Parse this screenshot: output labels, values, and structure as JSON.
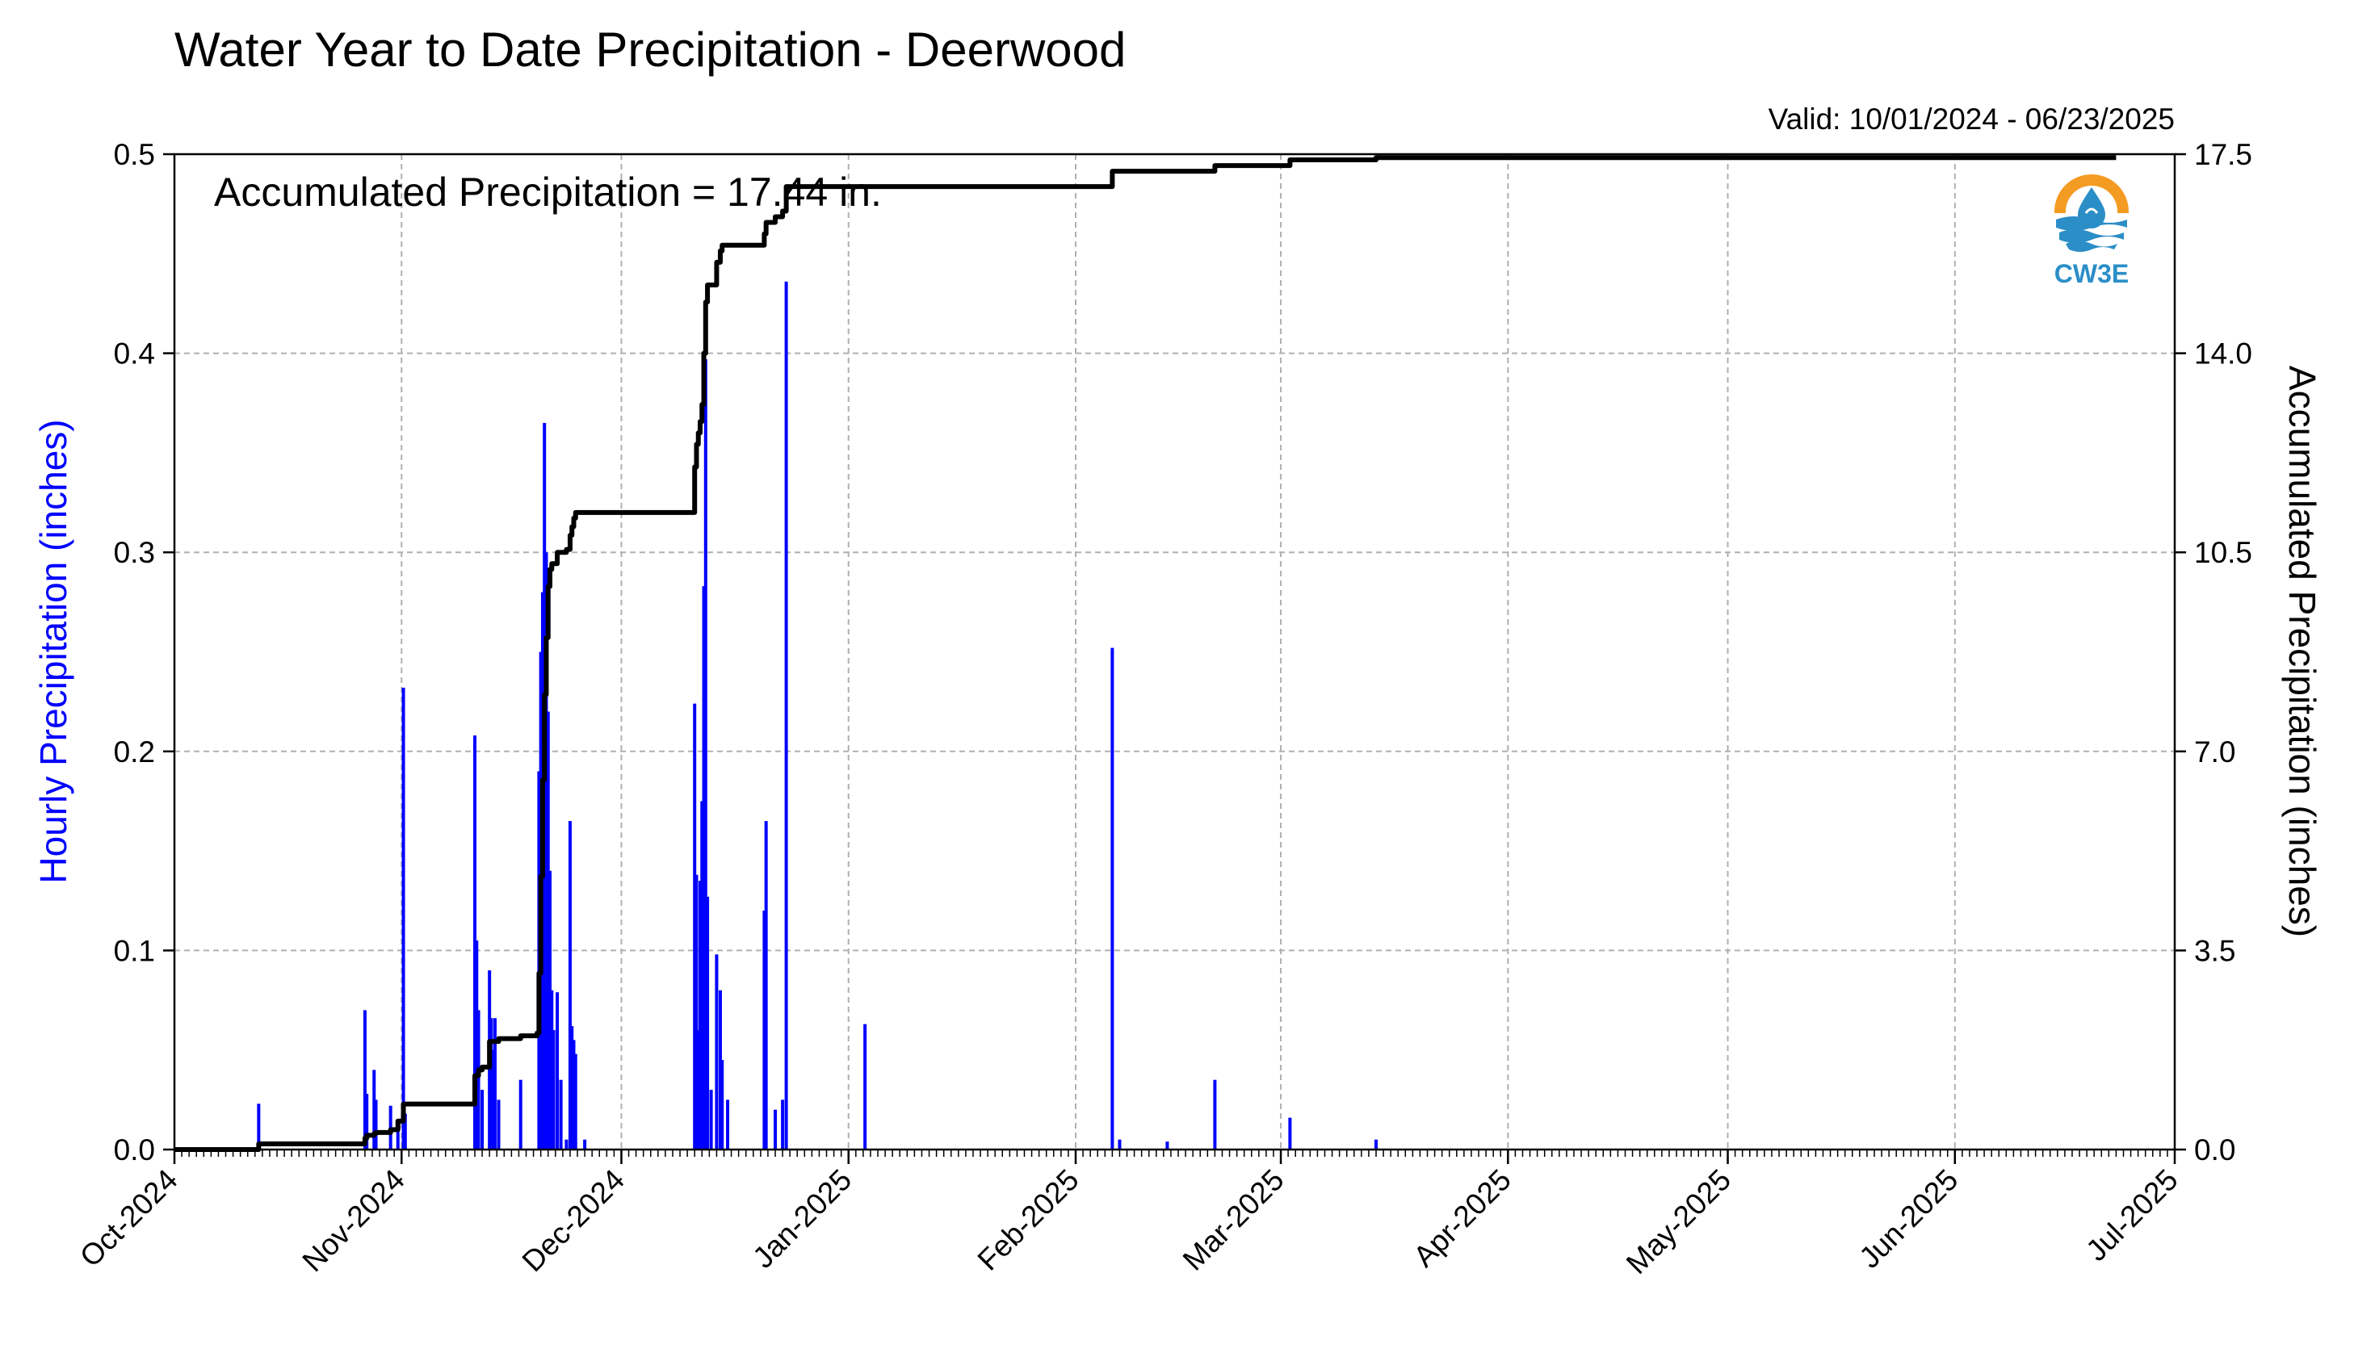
{
  "chart_data": {
    "type": "bar",
    "title": "Water Year to Date Precipitation - Deerwood",
    "subtitle": "Valid: 10/01/2024 - 06/23/2025",
    "annotation": "Accumulated Precipitation = 17.44 in.",
    "logo_text": "CW3E",
    "ylabel": "Hourly Precipitation (inches)",
    "y2label": "Accumulated Precipitation (inches)",
    "ylim": [
      0,
      0.5
    ],
    "y2lim": [
      0,
      17.5
    ],
    "xlim": [
      "2024-10-01",
      "2025-07-01"
    ],
    "grid": true,
    "yticks": [
      "0.0",
      "0.1",
      "0.2",
      "0.3",
      "0.4",
      "0.5"
    ],
    "y2ticks": [
      "0.0",
      "3.5",
      "7.0",
      "10.5",
      "14.0",
      "17.5"
    ],
    "xticks": [
      {
        "date": "2024-10-01",
        "label": "Oct-2024"
      },
      {
        "date": "2024-11-01",
        "label": "Nov-2024"
      },
      {
        "date": "2024-12-01",
        "label": "Dec-2024"
      },
      {
        "date": "2025-01-01",
        "label": "Jan-2025"
      },
      {
        "date": "2025-02-01",
        "label": "Feb-2025"
      },
      {
        "date": "2025-03-01",
        "label": "Mar-2025"
      },
      {
        "date": "2025-04-01",
        "label": "Apr-2025"
      },
      {
        "date": "2025-05-01",
        "label": "May-2025"
      },
      {
        "date": "2025-06-01",
        "label": "Jun-2025"
      },
      {
        "date": "2025-07-01",
        "label": "Jul-2025"
      }
    ],
    "series": [
      {
        "name": "Hourly Precipitation",
        "axis": "left",
        "color": "#0000ff",
        "data": [
          [
            "2024-10-12T12:00",
            0.023
          ],
          [
            "2024-10-27T00:00",
            0.07
          ],
          [
            "2024-10-27T06:00",
            0.028
          ],
          [
            "2024-10-28T06:00",
            0.04
          ],
          [
            "2024-10-28T12:00",
            0.025
          ],
          [
            "2024-10-30T12:00",
            0.022
          ],
          [
            "2024-10-31T12:00",
            0.012
          ],
          [
            "2024-11-01T06:00",
            0.232
          ],
          [
            "2024-11-01T12:00",
            0.018
          ],
          [
            "2024-11-11T00:00",
            0.208
          ],
          [
            "2024-11-11T06:00",
            0.105
          ],
          [
            "2024-11-11T12:00",
            0.07
          ],
          [
            "2024-11-12T00:00",
            0.03
          ],
          [
            "2024-11-13T00:00",
            0.09
          ],
          [
            "2024-11-13T06:00",
            0.066
          ],
          [
            "2024-11-13T12:00",
            0.05
          ],
          [
            "2024-11-13T18:00",
            0.066
          ],
          [
            "2024-11-14T06:00",
            0.025
          ],
          [
            "2024-11-17T06:00",
            0.035
          ],
          [
            "2024-11-19T18:00",
            0.19
          ],
          [
            "2024-11-20T00:00",
            0.25
          ],
          [
            "2024-11-20T06:00",
            0.28
          ],
          [
            "2024-11-20T12:00",
            0.365
          ],
          [
            "2024-11-20T18:00",
            0.3
          ],
          [
            "2024-11-21T00:00",
            0.22
          ],
          [
            "2024-11-21T06:00",
            0.14
          ],
          [
            "2024-11-21T12:00",
            0.08
          ],
          [
            "2024-11-21T18:00",
            0.06
          ],
          [
            "2024-11-22T06:00",
            0.079
          ],
          [
            "2024-11-22T18:00",
            0.035
          ],
          [
            "2024-11-23T12:00",
            0.005
          ],
          [
            "2024-11-24T00:00",
            0.165
          ],
          [
            "2024-11-24T06:00",
            0.062
          ],
          [
            "2024-11-24T12:00",
            0.055
          ],
          [
            "2024-11-24T18:00",
            0.048
          ],
          [
            "2024-11-26T00:00",
            0.005
          ],
          [
            "2024-12-11T00:00",
            0.224
          ],
          [
            "2024-12-11T06:00",
            0.138
          ],
          [
            "2024-12-11T12:00",
            0.06
          ],
          [
            "2024-12-11T18:00",
            0.135
          ],
          [
            "2024-12-12T00:00",
            0.175
          ],
          [
            "2024-12-12T06:00",
            0.283
          ],
          [
            "2024-12-12T12:00",
            0.397
          ],
          [
            "2024-12-12T18:00",
            0.127
          ],
          [
            "2024-12-13T06:00",
            0.03
          ],
          [
            "2024-12-14T00:00",
            0.098
          ],
          [
            "2024-12-14T12:00",
            0.08
          ],
          [
            "2024-12-14T18:00",
            0.045
          ],
          [
            "2024-12-15T12:00",
            0.025
          ],
          [
            "2024-12-20T12:00",
            0.12
          ],
          [
            "2024-12-20T18:00",
            0.165
          ],
          [
            "2024-12-22T00:00",
            0.02
          ],
          [
            "2024-12-23T00:00",
            0.025
          ],
          [
            "2024-12-23T12:00",
            0.436
          ],
          [
            "2025-01-03T06:00",
            0.063
          ],
          [
            "2025-02-06T00:00",
            0.252
          ],
          [
            "2025-02-07T00:00",
            0.005
          ],
          [
            "2025-02-13T12:00",
            0.004
          ],
          [
            "2025-02-20T00:00",
            0.035
          ],
          [
            "2025-03-02T06:00",
            0.016
          ],
          [
            "2025-03-14T00:00",
            0.005
          ]
        ]
      },
      {
        "name": "Accumulated Precipitation",
        "axis": "right",
        "color": "#000000",
        "step_data": [
          [
            "2024-10-01T00:00",
            0.0
          ],
          [
            "2024-10-12T12:00",
            0.1
          ],
          [
            "2024-10-27T00:00",
            0.2
          ],
          [
            "2024-10-27T06:00",
            0.25
          ],
          [
            "2024-10-28T06:00",
            0.28
          ],
          [
            "2024-10-28T12:00",
            0.3
          ],
          [
            "2024-10-30T12:00",
            0.35
          ],
          [
            "2024-10-31T12:00",
            0.5
          ],
          [
            "2024-11-01T06:00",
            0.8
          ],
          [
            "2024-11-11T00:00",
            1.3
          ],
          [
            "2024-11-11T12:00",
            1.4
          ],
          [
            "2024-11-12T00:00",
            1.45
          ],
          [
            "2024-11-13T00:00",
            1.9
          ],
          [
            "2024-11-14T06:00",
            1.95
          ],
          [
            "2024-11-17T06:00",
            2.0
          ],
          [
            "2024-11-19T12:00",
            2.05
          ],
          [
            "2024-11-19T18:00",
            3.1
          ],
          [
            "2024-11-20T00:00",
            4.8
          ],
          [
            "2024-11-20T06:00",
            6.5
          ],
          [
            "2024-11-20T12:00",
            8.0
          ],
          [
            "2024-11-20T18:00",
            9.0
          ],
          [
            "2024-11-21T00:00",
            9.9
          ],
          [
            "2024-11-21T06:00",
            10.2
          ],
          [
            "2024-11-21T12:00",
            10.3
          ],
          [
            "2024-11-22T06:00",
            10.5
          ],
          [
            "2024-11-23T12:00",
            10.55
          ],
          [
            "2024-11-24T00:00",
            10.8
          ],
          [
            "2024-11-24T06:00",
            10.95
          ],
          [
            "2024-11-24T12:00",
            11.1
          ],
          [
            "2024-11-24T18:00",
            11.2
          ],
          [
            "2024-12-11T00:00",
            12.0
          ],
          [
            "2024-12-11T06:00",
            12.4
          ],
          [
            "2024-12-11T12:00",
            12.6
          ],
          [
            "2024-12-11T18:00",
            12.8
          ],
          [
            "2024-12-12T00:00",
            13.1
          ],
          [
            "2024-12-12T06:00",
            14.0
          ],
          [
            "2024-12-12T12:00",
            14.9
          ],
          [
            "2024-12-12T18:00",
            15.2
          ],
          [
            "2024-12-14T00:00",
            15.6
          ],
          [
            "2024-12-14T12:00",
            15.8
          ],
          [
            "2024-12-14T18:00",
            15.9
          ],
          [
            "2024-12-20T12:00",
            16.1
          ],
          [
            "2024-12-20T18:00",
            16.3
          ],
          [
            "2024-12-22T00:00",
            16.4
          ],
          [
            "2024-12-23T00:00",
            16.5
          ],
          [
            "2024-12-23T12:00",
            16.93
          ],
          [
            "2025-02-06T00:00",
            17.2
          ],
          [
            "2025-02-20T00:00",
            17.3
          ],
          [
            "2025-03-02T06:00",
            17.4
          ],
          [
            "2025-03-14T00:00",
            17.44
          ],
          [
            "2025-06-23T00:00",
            17.44
          ]
        ]
      }
    ]
  }
}
